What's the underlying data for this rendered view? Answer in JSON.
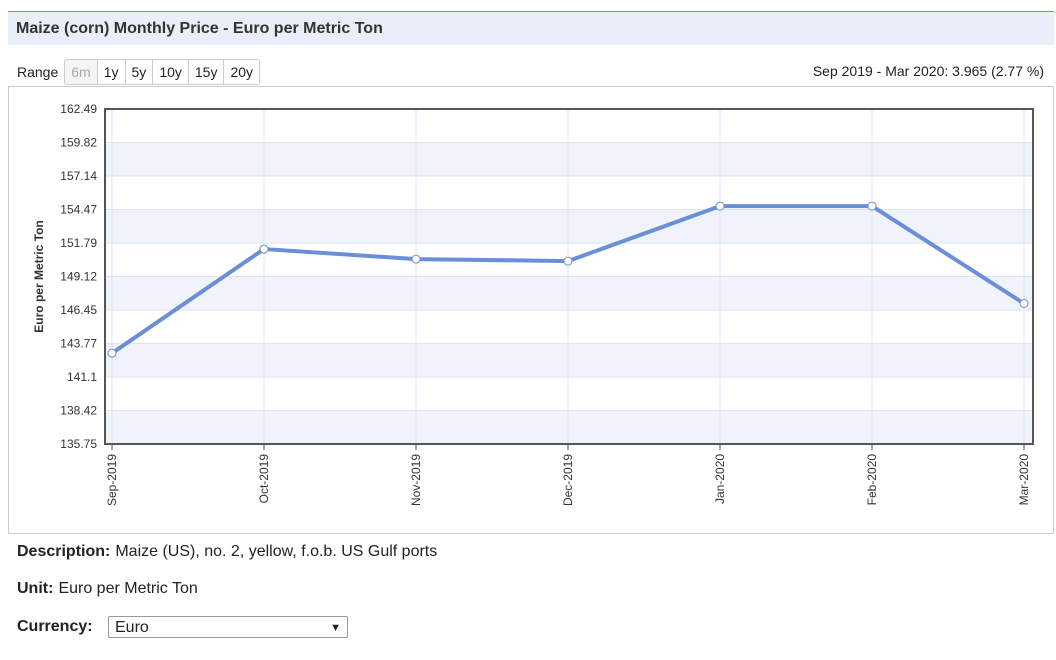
{
  "header": {
    "title": "Maize (corn) Monthly Price - Euro per Metric Ton"
  },
  "range": {
    "label": "Range",
    "options": [
      "6m",
      "1y",
      "5y",
      "10y",
      "15y",
      "20y"
    ]
  },
  "summary": "Sep 2019 - Mar 2020: 3.965 (2.77 %)",
  "chart_data": {
    "type": "line",
    "y_label": "Euro per Metric Ton",
    "categories": [
      "Sep-2019",
      "Oct-2019",
      "Nov-2019",
      "Dec-2019",
      "Jan-2020",
      "Feb-2020",
      "Mar-2020"
    ],
    "values": [
      143.0,
      151.31,
      150.51,
      150.35,
      154.74,
      154.74,
      146.965
    ],
    "color": "#6a8fd8",
    "ylim": [
      135.75,
      162.49
    ],
    "yticks": [
      135.75,
      138.42,
      141.1,
      143.77,
      146.45,
      149.12,
      151.79,
      154.47,
      157.14,
      159.82,
      162.49
    ],
    "grid": true
  },
  "description": {
    "label": "Description:",
    "text": "Maize (US), no. 2, yellow, f.o.b. US Gulf ports"
  },
  "unit": {
    "label": "Unit:",
    "text": "Euro per Metric Ton"
  },
  "currency": {
    "label": "Currency:",
    "value": "Euro"
  }
}
